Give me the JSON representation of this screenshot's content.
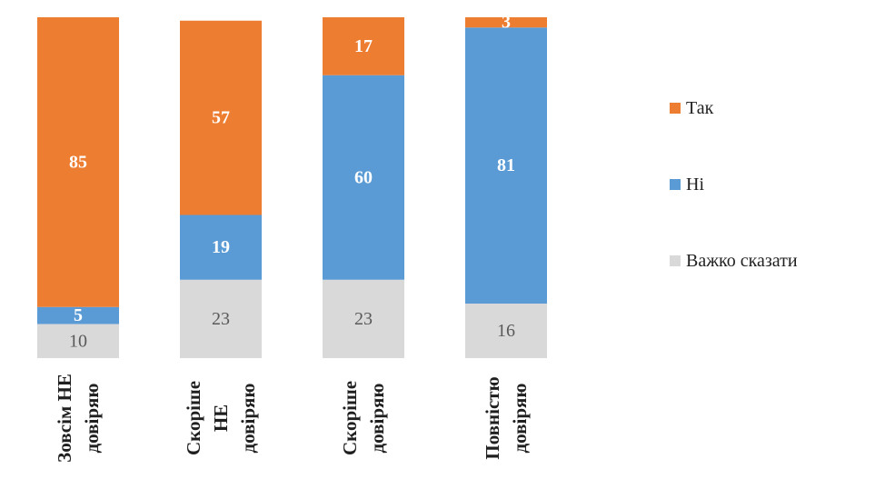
{
  "chart_data": {
    "type": "bar",
    "stacked": true,
    "categories": [
      [
        "Зовсім НЕ",
        "довіряю"
      ],
      [
        "Скоріше",
        "НЕ",
        "довіряю"
      ],
      [
        "Скоріше",
        "довіряю"
      ],
      [
        "Повністю",
        "довіряю"
      ]
    ],
    "series": [
      {
        "name": "Важко сказати",
        "color": "#d9d9d9",
        "values": [
          10,
          23,
          23,
          16
        ]
      },
      {
        "name": "Ні",
        "color": "#5b9bd5",
        "values": [
          5,
          19,
          60,
          81
        ]
      },
      {
        "name": "Так",
        "color": "#ed7d31",
        "values": [
          85,
          57,
          17,
          3
        ]
      }
    ],
    "legend": {
      "position": "right",
      "order": [
        "Так",
        "Ні",
        "Важко сказати"
      ]
    },
    "ylim": [
      0,
      100
    ],
    "grid": false,
    "data_labels": true
  }
}
